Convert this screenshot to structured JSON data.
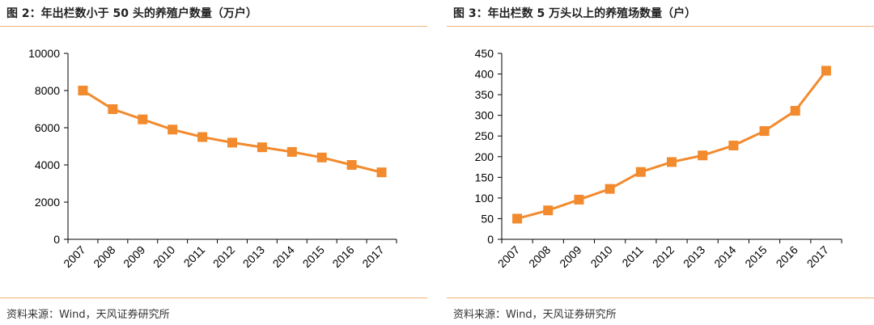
{
  "colors": {
    "series": "#f28a2e",
    "rule": "#f0b27a",
    "axis": "#000000"
  },
  "panels": [
    {
      "title": "图 2：年出栏数小于 50 头的养殖户数量（万户）",
      "source": "资料来源：Wind，天风证券研究所"
    },
    {
      "title": "图 3：年出栏数 5 万头以上的养殖场数量（户）",
      "source": "资料来源：Wind，天风证券研究所"
    }
  ],
  "chart_data": [
    {
      "type": "line",
      "title": "",
      "xlabel": "",
      "ylabel": "",
      "categories": [
        "2007",
        "2008",
        "2009",
        "2010",
        "2011",
        "2012",
        "2013",
        "2014",
        "2015",
        "2016",
        "2017"
      ],
      "series": [
        {
          "values": [
            8000,
            7000,
            6450,
            5900,
            5500,
            5200,
            4950,
            4700,
            4400,
            4000,
            3600
          ]
        }
      ],
      "ylim": [
        0,
        10000
      ],
      "yticks": [
        0,
        2000,
        4000,
        6000,
        8000,
        10000
      ],
      "marker": "square",
      "grid": false,
      "legend": "none"
    },
    {
      "type": "line",
      "title": "",
      "xlabel": "",
      "ylabel": "",
      "categories": [
        "2007",
        "2008",
        "2009",
        "2010",
        "2011",
        "2012",
        "2013",
        "2014",
        "2015",
        "2016",
        "2017"
      ],
      "series": [
        {
          "values": [
            50,
            70,
            96,
            122,
            163,
            187,
            203,
            227,
            262,
            311,
            408
          ]
        }
      ],
      "ylim": [
        0,
        450
      ],
      "yticks": [
        0,
        50,
        100,
        150,
        200,
        250,
        300,
        350,
        400,
        450
      ],
      "marker": "square",
      "grid": false,
      "legend": "none"
    }
  ]
}
